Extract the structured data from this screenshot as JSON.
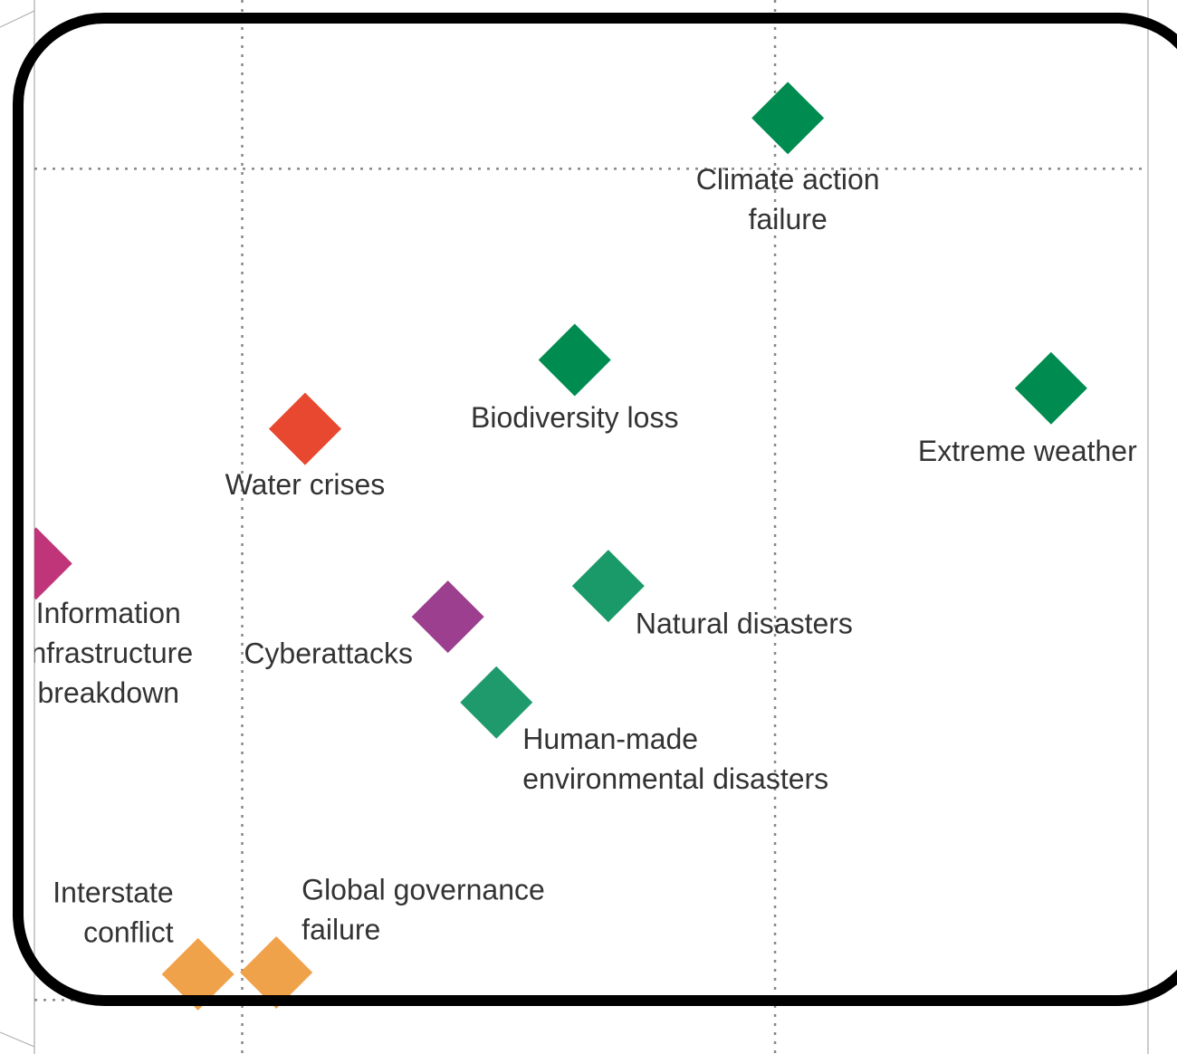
{
  "chart_data": {
    "type": "scatter",
    "xlim": [
      -0.39,
      1.7
    ],
    "ylim": [
      -0.065,
      1.203
    ],
    "xticks": [
      0,
      1
    ],
    "yticks": [
      0,
      1
    ],
    "grid": true,
    "points": [
      {
        "label": [
          "Climate action",
          "failure"
        ],
        "x": 1.024,
        "y": 1.061,
        "color": "#008c50"
      },
      {
        "label": [
          "Biodiversity loss"
        ],
        "x": 0.624,
        "y": 0.77,
        "color": "#008c50"
      },
      {
        "label": [
          "Extreme weather"
        ],
        "x": 1.518,
        "y": 0.736,
        "color": "#008c50"
      },
      {
        "label": [
          "Water crises"
        ],
        "x": 0.118,
        "y": 0.687,
        "color": "#e8482f"
      },
      {
        "label": [
          "Cyberattacks"
        ],
        "x": 0.386,
        "y": 0.461,
        "color": "#9b3f8e"
      },
      {
        "label": [
          "Natural disasters"
        ],
        "x": 0.687,
        "y": 0.498,
        "color": "#1a9a68"
      },
      {
        "label": [
          "Human-made",
          "environmental disasters"
        ],
        "x": 0.477,
        "y": 0.358,
        "color": "#1f9a6c"
      },
      {
        "label": [
          "Interstate",
          "conflict"
        ],
        "x": -0.083,
        "y": 0.031,
        "color": "#f0a24a"
      },
      {
        "label": [
          "Global governance",
          "failure"
        ],
        "x": 0.064,
        "y": 0.033,
        "color": "#f0a24a"
      },
      {
        "label": [
          "Information",
          "infrastructure",
          "breakdown"
        ],
        "x": -0.387,
        "y": 0.525,
        "color": "#c0357a"
      }
    ]
  }
}
